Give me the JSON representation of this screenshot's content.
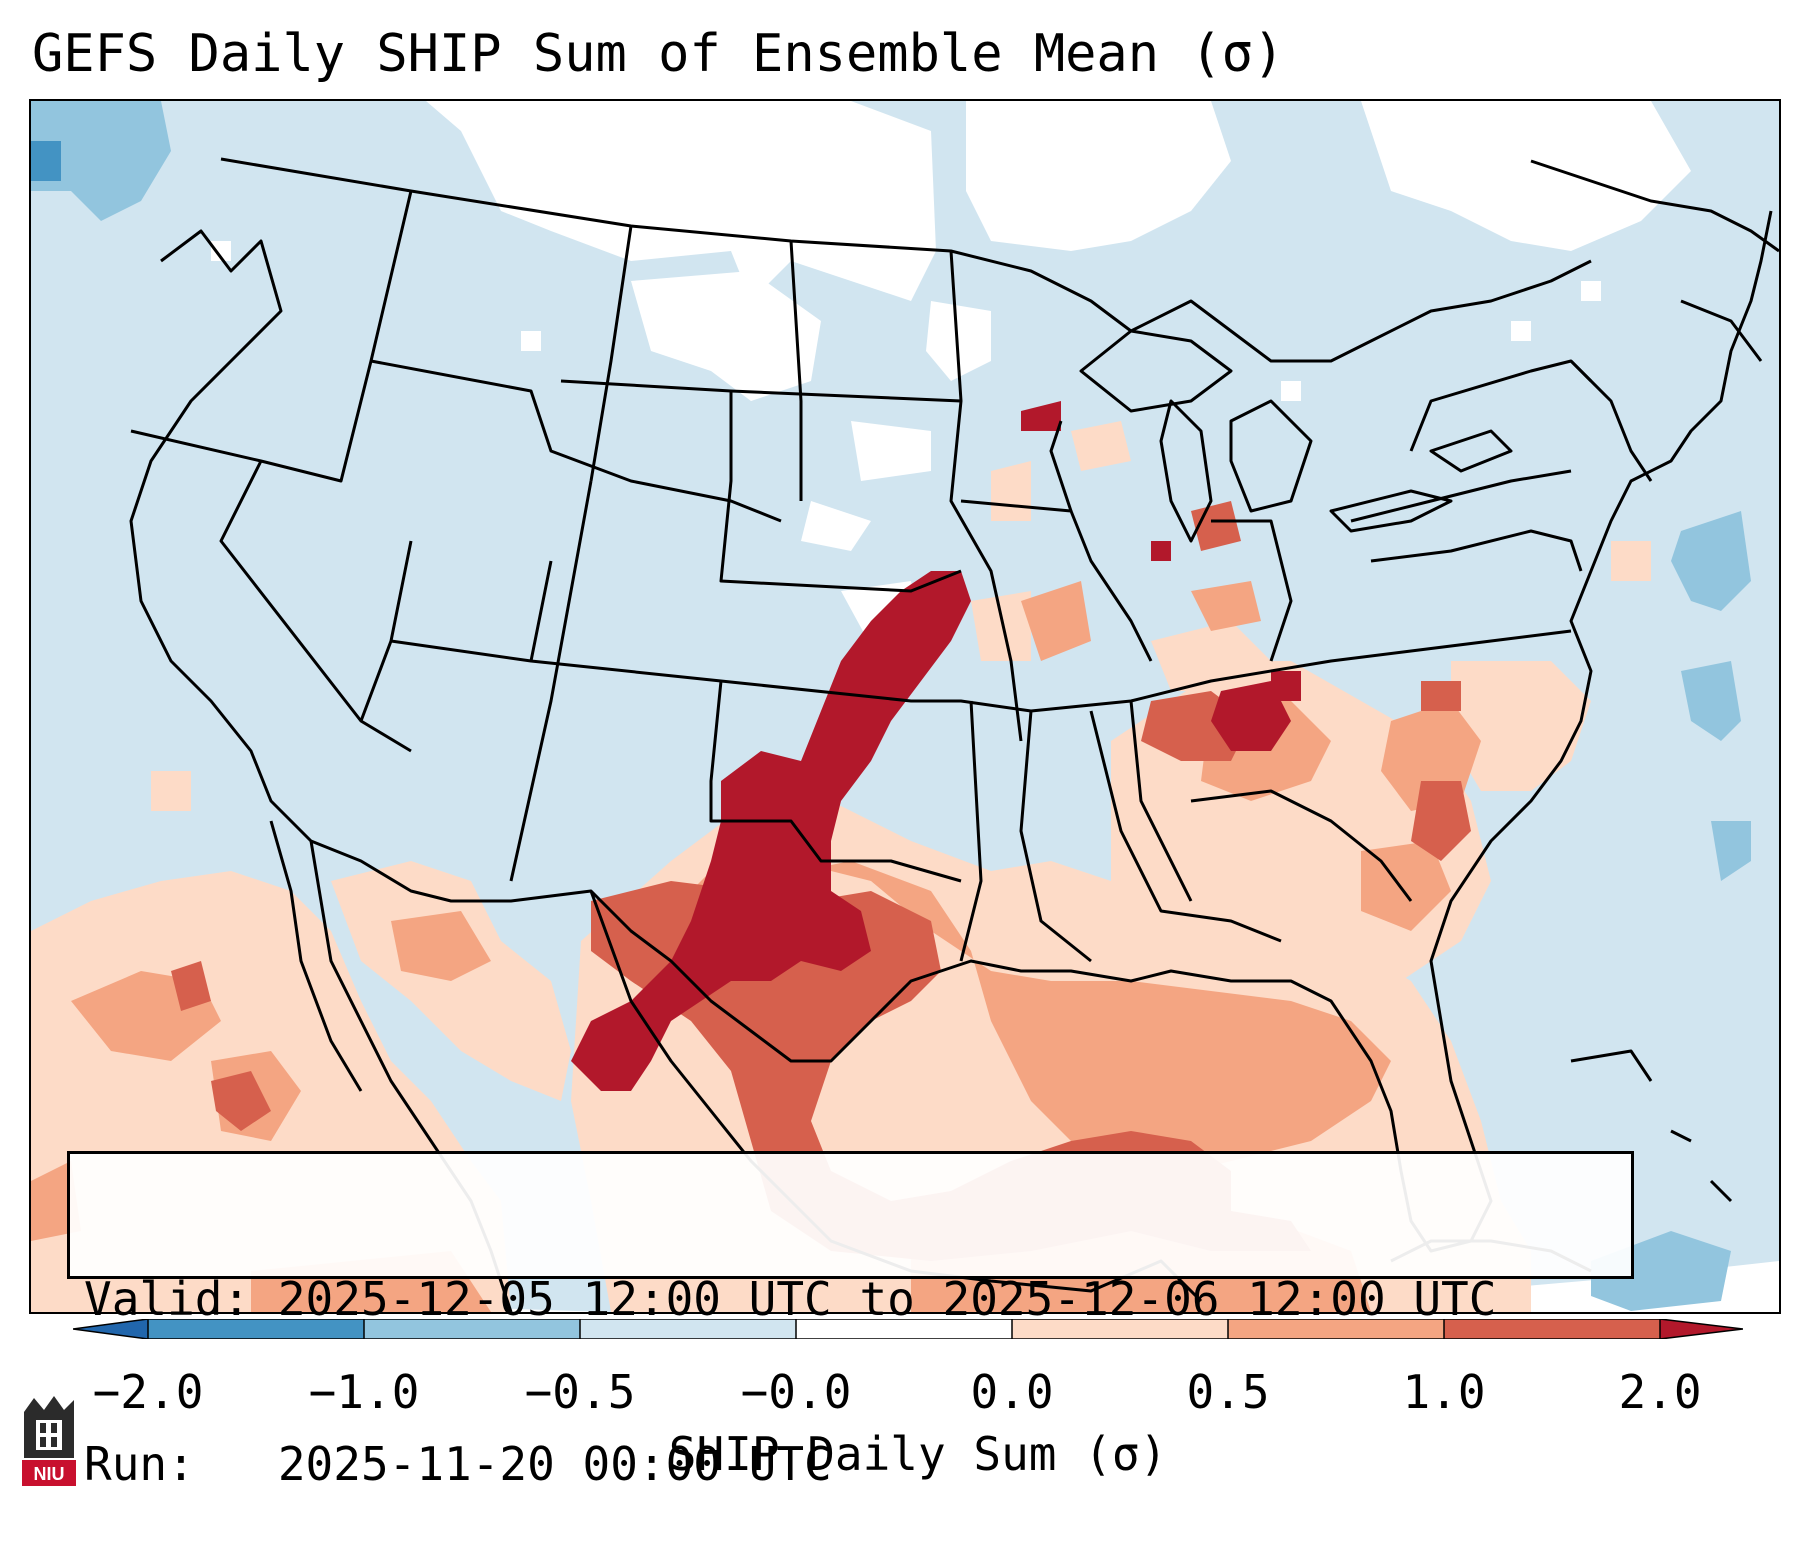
{
  "title": "GEFS Daily SHIP Sum of Ensemble Mean (σ)",
  "map": {
    "description_colors": {
      "ocean_light_blue": "#cfe3ef",
      "land_light_blue": "#d1e5f0",
      "zero_white": "#ffffff",
      "neg_0_5_to_1": "#92c5de",
      "neg_1_to_2": "#4393c3",
      "neg_2_plus": "#2166ac",
      "pos_0_to_0_5": "#fddbc7",
      "pos_0_5_to_1": "#f4a582",
      "pos_1_to_2": "#d6604d",
      "pos_2_plus": "#b2182b",
      "border": "#000000"
    }
  },
  "info": {
    "valid_line": "Valid: 2025-12-05 12:00 UTC to 2025-12-06 12:00 UTC",
    "run_line": "Run:   2025-11-20 00:00 UTC"
  },
  "colorbar": {
    "ticks": [
      "−2.0",
      "−1.0",
      "−0.5",
      "−0.0",
      "0.0",
      "0.5",
      "1.0",
      "2.0"
    ],
    "label": "SHIP Daily Sum (σ)",
    "segments": [
      "#2166ac",
      "#4393c3",
      "#92c5de",
      "#d1e5f0",
      "#ffffff",
      "#fddbc7",
      "#f4a582",
      "#d6604d",
      "#b2182b"
    ]
  },
  "logo": {
    "text": "NIU",
    "color": "#c8102e"
  }
}
